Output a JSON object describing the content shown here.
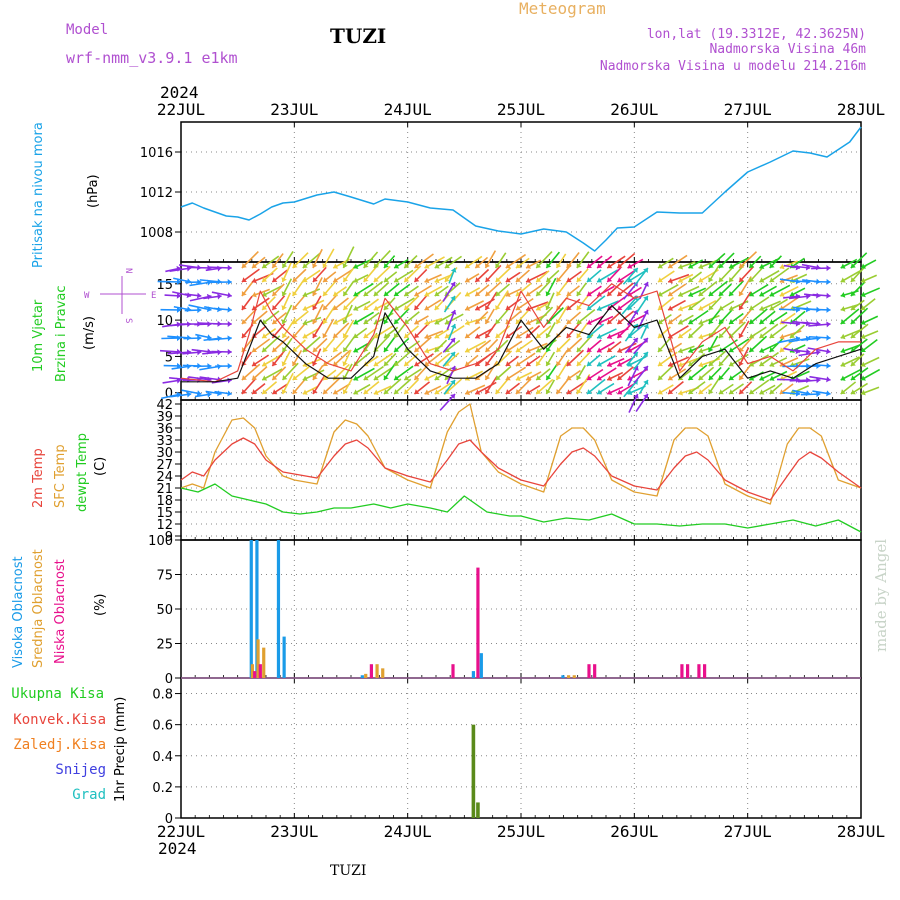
{
  "header": {
    "model_label": "Model",
    "model_name": "wrf-nmm_v3.9.1 e1km",
    "station": "TUZI",
    "title": "Meteogram",
    "lonlat": "lon,lat (19.3312E, 42.3625N)",
    "elevation": "Nadmorska Visina 46m",
    "model_elevation": "Nadmorska Visina u modelu 214.216m"
  },
  "footer": {
    "station": "TUZI",
    "credit": "made by Angel"
  },
  "time_axis": {
    "year": "2024",
    "days": [
      "22JUL",
      "23JUL",
      "24JUL",
      "25JUL",
      "26JUL",
      "27JUL",
      "28JUL"
    ]
  },
  "colors": {
    "pressure": "#1aa3e8",
    "temp2m": "#e8453c",
    "sfc": "#e0a030",
    "dewpt": "#22cc22",
    "high_cloud": "#1a9be8",
    "mid_cloud": "#e0a030",
    "low_cloud": "#e8108c",
    "total_precip": "#22cc22",
    "conv_precip": "#e8453c",
    "frozen_precip": "#f08020",
    "snow": "#4040e0",
    "hail": "#20c0c0",
    "wind_speed": "#111111",
    "wind_gust": "#e8453c",
    "header_purple": "#b050d0",
    "title_orange": "#e8b060",
    "grid": "#888888"
  },
  "panels": {
    "pressure": {
      "ylabel_a": "Pritisak na nivou mora",
      "ylabel_b": "(hPa)",
      "ticks": [
        "1008",
        "1012",
        "1016"
      ]
    },
    "wind": {
      "ylabel_a": "10m Vjetar",
      "ylabel_b": "Brzina i Pravac",
      "ylabel_c": "(m/s)",
      "compass": {
        "n": "N",
        "s": "S",
        "w": "W",
        "e": "E"
      },
      "ticks": [
        "0",
        "5",
        "10",
        "15"
      ]
    },
    "temp": {
      "ylabel_a": "2m Temp",
      "ylabel_b": "SFC Temp",
      "ylabel_c": "dewpt Temp",
      "ylabel_d": "(C)",
      "ticks": [
        "9",
        "12",
        "15",
        "18",
        "21",
        "24",
        "27",
        "30",
        "33",
        "36",
        "39",
        "42"
      ]
    },
    "cloud": {
      "ylabel_a": "Visoka Oblacnost",
      "ylabel_b": "Srednja Oblacnost",
      "ylabel_c": "Niska Oblacnost",
      "ylabel_d": "(%)",
      "ticks": [
        "0",
        "25",
        "50",
        "75",
        "100"
      ]
    },
    "precip": {
      "legend": [
        "Ukupna Kisa",
        "Konvek.Kisa",
        "Zaledj.Kisa",
        "Snijeg",
        "Grad"
      ],
      "ylabel": "1hr Precip (mm)",
      "ticks": [
        "0",
        "0.2",
        "0.4",
        "0.6",
        "0.8"
      ]
    }
  },
  "chart_data": [
    {
      "type": "line",
      "x_unit": "days since 22JUL 00Z",
      "ylim": [
        1005,
        1019
      ],
      "series": [
        {
          "x": [
            0,
            0.1,
            0.2,
            0.3,
            0.4,
            0.5,
            0.6,
            0.7,
            0.8,
            0.9,
            1.0,
            1.2,
            1.35,
            1.5,
            1.7,
            1.8,
            2.0,
            2.2,
            2.4,
            2.6,
            2.8,
            3.0,
            3.2,
            3.4,
            3.55,
            3.65,
            3.75,
            3.85,
            4.0,
            4.2,
            4.4,
            4.6,
            4.8,
            5.0,
            5.2,
            5.4,
            5.55,
            5.7,
            5.9,
            6.0
          ],
          "values": [
            1010.5,
            1010.9,
            1010.4,
            1010.0,
            1009.6,
            1009.5,
            1009.2,
            1009.8,
            1010.5,
            1010.9,
            1011.0,
            1011.7,
            1012.0,
            1011.5,
            1010.8,
            1011.3,
            1011.0,
            1010.4,
            1010.2,
            1008.6,
            1008.1,
            1007.8,
            1008.3,
            1008.0,
            1006.9,
            1006.1,
            1007.2,
            1008.4,
            1008.5,
            1010.0,
            1009.9,
            1009.9,
            1012.0,
            1014.0,
            1015.0,
            1016.1,
            1015.9,
            1015.5,
            1017.0,
            1018.5
          ]
        }
      ]
    },
    {
      "type": "line",
      "x_unit": "days since 22JUL 00Z",
      "ylim": [
        -1,
        18
      ],
      "series": [
        {
          "name": "speed",
          "x": [
            0,
            0.3,
            0.5,
            0.6,
            0.7,
            0.8,
            0.9,
            1.1,
            1.3,
            1.5,
            1.7,
            1.8,
            2.0,
            2.2,
            2.4,
            2.6,
            2.8,
            3.0,
            3.2,
            3.4,
            3.6,
            3.8,
            4.0,
            4.2,
            4.4,
            4.6,
            4.8,
            5.0,
            5.2,
            5.4,
            5.6,
            5.8,
            6.0
          ],
          "values": [
            1.5,
            1.5,
            2,
            6,
            10,
            8,
            7,
            4,
            2,
            2,
            5,
            11,
            6,
            3,
            2,
            2,
            4,
            10,
            6,
            9,
            8,
            12,
            9,
            10,
            2,
            5,
            6,
            2,
            3,
            2,
            4,
            5,
            6
          ]
        },
        {
          "name": "gust",
          "x": [
            0,
            0.3,
            0.5,
            0.6,
            0.7,
            0.8,
            0.9,
            1.1,
            1.3,
            1.5,
            1.7,
            1.8,
            2.0,
            2.2,
            2.4,
            2.6,
            2.8,
            3.0,
            3.2,
            3.4,
            3.6,
            3.8,
            4.0,
            4.2,
            4.4,
            4.6,
            4.8,
            5.0,
            5.2,
            5.4,
            5.6,
            5.8,
            6.0
          ],
          "values": [
            2,
            1.5,
            3,
            8,
            14,
            11,
            9,
            6,
            4,
            3,
            8,
            13,
            9,
            4,
            3,
            4,
            6,
            14,
            9,
            13,
            12,
            15,
            13,
            14,
            3,
            7,
            9,
            4,
            5,
            3,
            6,
            7,
            7
          ]
        }
      ]
    },
    {
      "type": "line",
      "x_unit": "days since 22JUL 00Z",
      "ylim": [
        8,
        43
      ],
      "series": [
        {
          "name": "2m",
          "x": [
            0,
            0.1,
            0.2,
            0.3,
            0.45,
            0.55,
            0.65,
            0.75,
            0.9,
            1.0,
            1.2,
            1.35,
            1.45,
            1.55,
            1.65,
            1.8,
            2.0,
            2.2,
            2.35,
            2.45,
            2.55,
            2.65,
            2.8,
            3.0,
            3.2,
            3.35,
            3.45,
            3.55,
            3.65,
            3.8,
            4.0,
            4.2,
            4.35,
            4.45,
            4.55,
            4.65,
            4.8,
            5.0,
            5.2,
            5.35,
            5.45,
            5.55,
            5.65,
            5.8,
            6.0
          ],
          "values": [
            23,
            25,
            24,
            28,
            32,
            33.5,
            32,
            28,
            25,
            24.5,
            23.5,
            29,
            32,
            33,
            31,
            26,
            24,
            22.5,
            28,
            32,
            33,
            30,
            26,
            23,
            21.5,
            27,
            30,
            31,
            29,
            24,
            21.5,
            20.5,
            26,
            29,
            30,
            28,
            23,
            20,
            18,
            24,
            28,
            30,
            28.5,
            25,
            21
          ]
        },
        {
          "name": "sfc",
          "x": [
            0,
            0.1,
            0.2,
            0.3,
            0.45,
            0.55,
            0.65,
            0.75,
            0.9,
            1.0,
            1.2,
            1.35,
            1.45,
            1.55,
            1.65,
            1.8,
            2.0,
            2.2,
            2.35,
            2.45,
            2.55,
            2.65,
            2.8,
            3.0,
            3.2,
            3.35,
            3.45,
            3.55,
            3.65,
            3.8,
            4.0,
            4.2,
            4.35,
            4.45,
            4.55,
            4.65,
            4.8,
            5.0,
            5.2,
            5.35,
            5.45,
            5.55,
            5.65,
            5.8,
            6.0
          ],
          "values": [
            21,
            22,
            21,
            30,
            38,
            38.5,
            36,
            29,
            24,
            23,
            22,
            35,
            38,
            37,
            34,
            26,
            23,
            21,
            35,
            40,
            42,
            30,
            25,
            22,
            20,
            34,
            36,
            36,
            33,
            23,
            20,
            19,
            33,
            36,
            36,
            34,
            22,
            19,
            17,
            32,
            36,
            36,
            34,
            23,
            21
          ]
        },
        {
          "name": "dewpt",
          "x": [
            0,
            0.15,
            0.3,
            0.45,
            0.6,
            0.75,
            0.9,
            1.05,
            1.2,
            1.35,
            1.5,
            1.7,
            1.85,
            2.0,
            2.2,
            2.35,
            2.5,
            2.7,
            2.9,
            3.0,
            3.2,
            3.4,
            3.6,
            3.8,
            4.0,
            4.2,
            4.4,
            4.6,
            4.8,
            5.0,
            5.2,
            5.4,
            5.6,
            5.8,
            6.0
          ],
          "values": [
            21,
            20,
            22,
            19,
            18,
            17,
            15,
            14.5,
            15,
            16,
            16,
            17,
            16,
            17,
            16,
            15,
            19,
            15,
            14,
            14,
            12.5,
            13.5,
            13,
            14.5,
            12,
            12,
            11.5,
            12,
            12,
            11,
            12,
            13,
            11.5,
            13,
            10
          ]
        }
      ]
    },
    {
      "type": "bar",
      "x_unit": "days since 22JUL 00Z",
      "ylim": [
        0,
        100
      ],
      "series": [
        {
          "name": "high",
          "x": [
            0.62,
            0.67,
            0.86,
            0.91,
            1.6,
            2.58,
            2.65,
            3.37
          ],
          "values": [
            100,
            100,
            100,
            30,
            2,
            5,
            18,
            2
          ]
        },
        {
          "name": "mid",
          "x": [
            0.63,
            0.68,
            0.73,
            1.63,
            1.73,
            1.78,
            3.42,
            3.47
          ],
          "values": [
            10,
            28,
            22,
            3,
            10,
            7,
            2,
            2
          ]
        },
        {
          "name": "low",
          "x": [
            0.65,
            0.7,
            1.68,
            2.4,
            2.62,
            3.6,
            3.65,
            4.42,
            4.47,
            4.57,
            4.62
          ],
          "values": [
            5,
            10,
            10,
            10,
            80,
            10,
            10,
            10,
            10,
            10,
            10
          ]
        }
      ]
    },
    {
      "type": "bar",
      "x_unit": "days since 22JUL 00Z",
      "ylim": [
        0,
        0.9
      ],
      "series": [
        {
          "name": "total",
          "x": [
            2.58,
            2.62
          ],
          "values": [
            0.6,
            0.1
          ]
        }
      ]
    }
  ]
}
